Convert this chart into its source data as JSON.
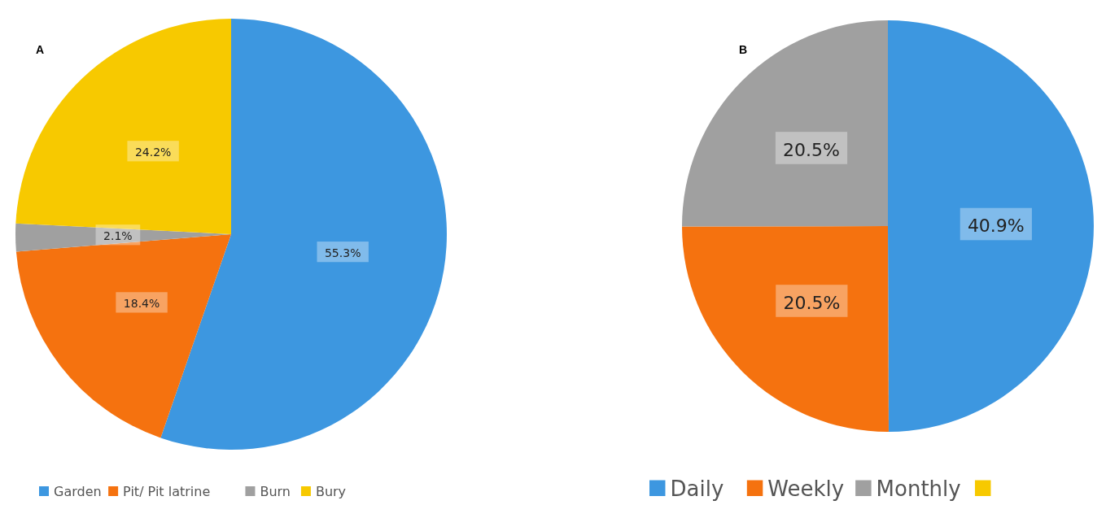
{
  "chart_data": [
    {
      "type": "pie",
      "title": "A",
      "categories": [
        "Garden",
        "Pit/ Pit latrine",
        "Burn",
        "Bury"
      ],
      "values": [
        55.3,
        18.4,
        2.1,
        24.2
      ],
      "colors": [
        "#3d97e0",
        "#f5720f",
        "#a0a0a0",
        "#f7c900"
      ],
      "value_labels": [
        "55.3%",
        "18.4%",
        "2.1%",
        "24.2%"
      ],
      "legend": "bottom"
    },
    {
      "type": "pie",
      "title": "B",
      "categories": [
        "Daily",
        "Weekly",
        "Monthly",
        null
      ],
      "values": [
        40.9,
        20.5,
        20.5,
        0
      ],
      "colors": [
        "#3d97e0",
        "#f5720f",
        "#a0a0a0",
        "#f7c900"
      ],
      "value_labels": [
        "40.9%",
        "20.5%",
        "20.5%",
        null
      ],
      "legend": "bottom"
    }
  ]
}
